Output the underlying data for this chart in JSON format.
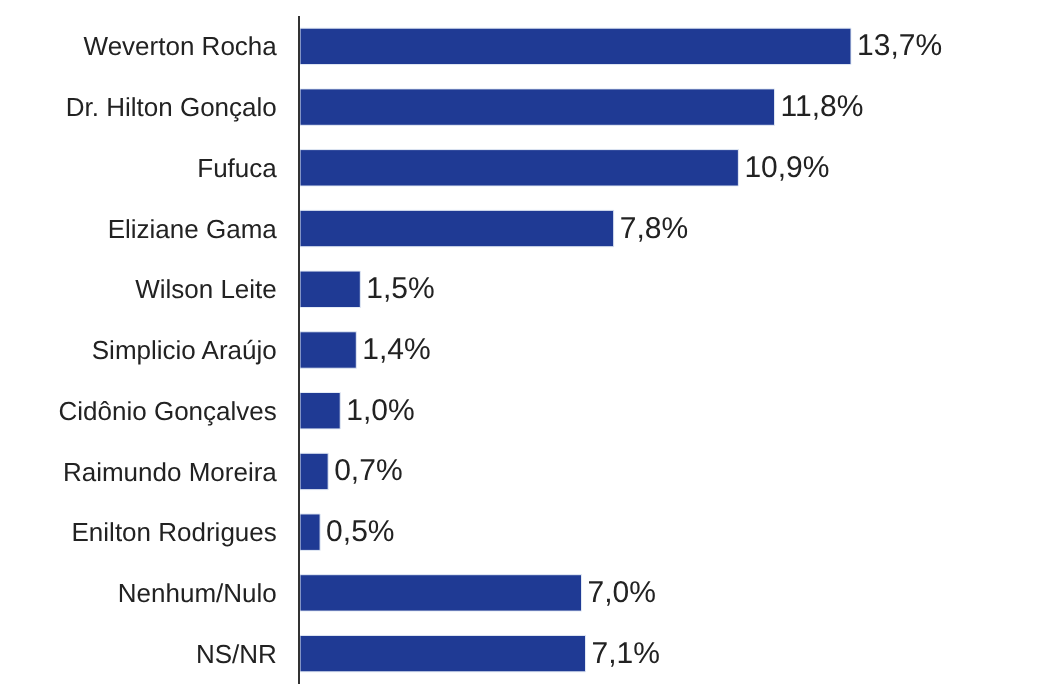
{
  "chart_data": {
    "type": "bar",
    "orientation": "horizontal",
    "categories": [
      "Weverton Rocha",
      "Dr. Hilton Gonçalo",
      "Fufuca",
      "Eliziane Gama",
      "Wilson Leite",
      "Simplicio Araújo",
      "Cidônio Gonçalves",
      "Raimundo Moreira",
      "Enilton Rodrigues",
      "Nenhum/Nulo",
      "NS/NR"
    ],
    "values": [
      13.7,
      11.8,
      10.9,
      7.8,
      1.5,
      1.4,
      1.0,
      0.7,
      0.5,
      7.0,
      7.1
    ],
    "value_labels": [
      "13,7%",
      "11,8%",
      "10,9%",
      "7,8%",
      "1,5%",
      "1,4%",
      "1,0%",
      "0,7%",
      "0,5%",
      "7,0%",
      "7,1%"
    ],
    "color": "#1f3a94"
  }
}
